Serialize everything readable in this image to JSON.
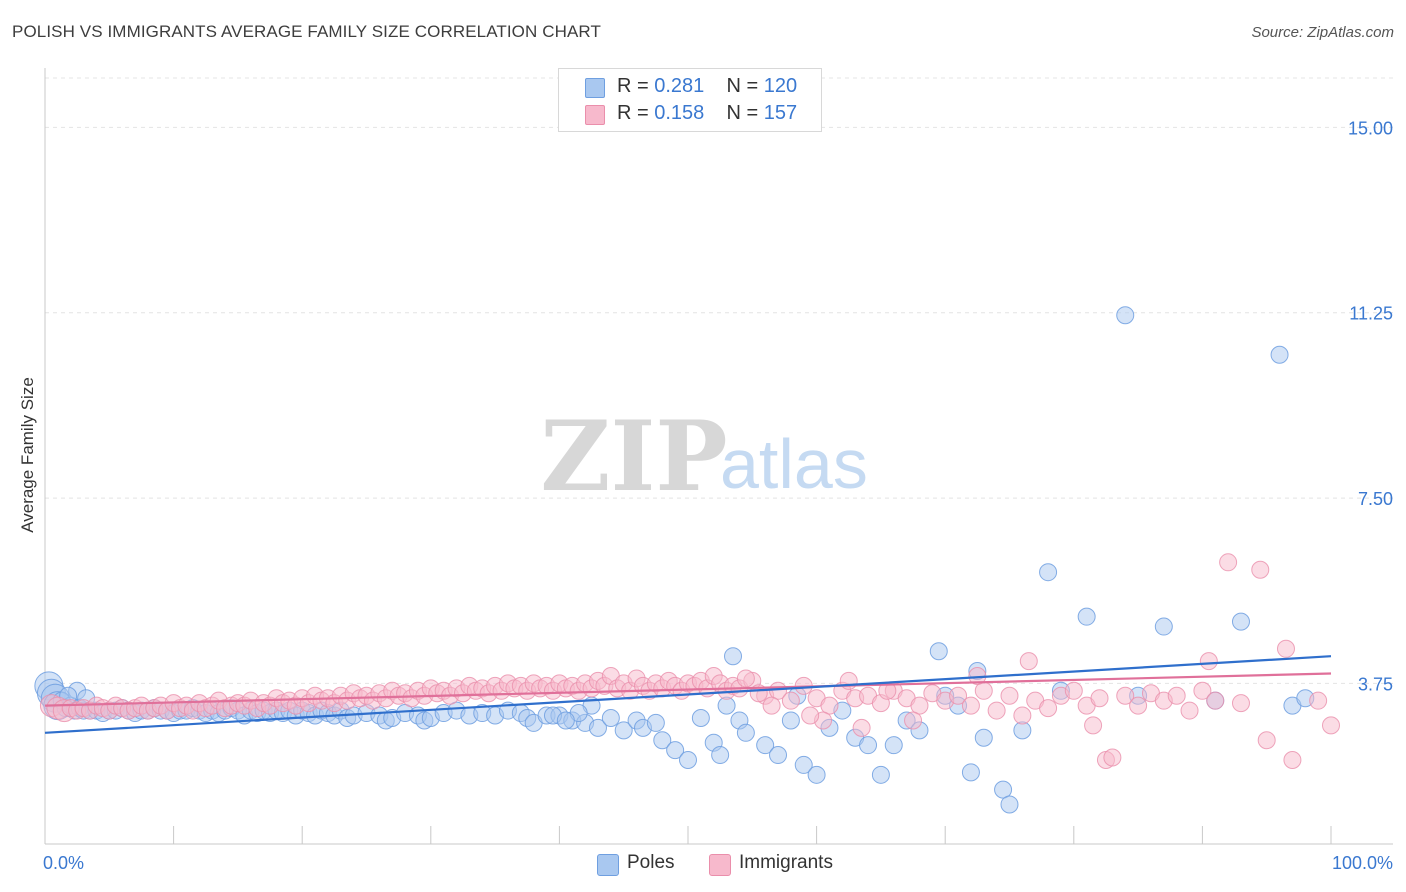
{
  "header": {
    "title": "POLISH VS IMMIGRANTS AVERAGE FAMILY SIZE CORRELATION CHART",
    "source": "Source: ZipAtlas.com"
  },
  "colors": {
    "poles_fill": "#a9c8f0",
    "poles_stroke": "#6f9fe0",
    "poles_line": "#2f6fcc",
    "immigrants_fill": "#f7b9cc",
    "immigrants_stroke": "#ea8eab",
    "immigrants_line": "#e0709a",
    "tick_label": "#3a78d0"
  },
  "legend": {
    "rows": [
      {
        "r_label": "R = ",
        "r_value": "0.281",
        "n_label": "N = ",
        "n_value": "120"
      },
      {
        "r_label": "R = ",
        "r_value": "0.158",
        "n_label": "N = ",
        "n_value": "157"
      }
    ],
    "bottom": [
      "Poles",
      "Immigrants"
    ]
  },
  "watermark": {
    "zip": "ZIP",
    "atlas": "atlas"
  },
  "chart_data": {
    "type": "scatter",
    "title": "POLISH VS IMMIGRANTS AVERAGE FAMILY SIZE CORRELATION CHART",
    "xlabel": "",
    "ylabel": "Average Family Size",
    "xlim": [
      0,
      100
    ],
    "ylim": [
      0.5,
      16
    ],
    "x_tick_labels": [
      "0.0%",
      "100.0%"
    ],
    "y_ticks": [
      3.75,
      7.5,
      11.25,
      15.0
    ],
    "y_tick_labels": [
      "3.75",
      "7.50",
      "11.25",
      "15.00"
    ],
    "grid": true,
    "legend_position": "top-center",
    "series": [
      {
        "name": "Poles",
        "r": 0.281,
        "n": 120,
        "trend": [
          [
            0,
            2.75
          ],
          [
            100,
            4.3
          ]
        ],
        "points": [
          [
            0.3,
            3.7
          ],
          [
            0.5,
            3.55
          ],
          [
            0.8,
            3.45
          ],
          [
            1.0,
            3.3
          ],
          [
            1.3,
            3.4
          ],
          [
            1.6,
            3.25
          ],
          [
            2.0,
            3.3
          ],
          [
            2.3,
            3.2
          ],
          [
            2.7,
            3.25
          ],
          [
            3.0,
            3.2
          ],
          [
            3.5,
            3.2
          ],
          [
            4.0,
            3.2
          ],
          [
            4.5,
            3.15
          ],
          [
            5.0,
            3.2
          ],
          [
            5.5,
            3.2
          ],
          [
            6.0,
            3.25
          ],
          [
            6.5,
            3.2
          ],
          [
            7.0,
            3.15
          ],
          [
            7.5,
            3.2
          ],
          [
            8.0,
            3.2
          ],
          [
            8.5,
            3.25
          ],
          [
            9.0,
            3.2
          ],
          [
            9.5,
            3.2
          ],
          [
            10.0,
            3.15
          ],
          [
            10.5,
            3.2
          ],
          [
            11.0,
            3.2
          ],
          [
            11.5,
            3.25
          ],
          [
            12.0,
            3.2
          ],
          [
            12.5,
            3.15
          ],
          [
            13.0,
            3.2
          ],
          [
            13.5,
            3.15
          ],
          [
            14.0,
            3.2
          ],
          [
            14.5,
            3.25
          ],
          [
            15.0,
            3.2
          ],
          [
            15.5,
            3.1
          ],
          [
            16.0,
            3.2
          ],
          [
            16.5,
            3.15
          ],
          [
            17.0,
            3.2
          ],
          [
            17.5,
            3.15
          ],
          [
            18.0,
            3.2
          ],
          [
            18.5,
            3.15
          ],
          [
            19.0,
            3.2
          ],
          [
            19.5,
            3.1
          ],
          [
            20.0,
            3.2
          ],
          [
            20.5,
            3.15
          ],
          [
            21.0,
            3.1
          ],
          [
            21.5,
            3.2
          ],
          [
            22.0,
            3.15
          ],
          [
            22.5,
            3.1
          ],
          [
            23.0,
            3.2
          ],
          [
            23.5,
            3.05
          ],
          [
            24.0,
            3.1
          ],
          [
            25.0,
            3.15
          ],
          [
            26.0,
            3.1
          ],
          [
            26.5,
            3.0
          ],
          [
            27.0,
            3.05
          ],
          [
            28.0,
            3.15
          ],
          [
            29.0,
            3.1
          ],
          [
            29.5,
            3.0
          ],
          [
            30.0,
            3.05
          ],
          [
            31.0,
            3.15
          ],
          [
            32.0,
            3.2
          ],
          [
            33.0,
            3.1
          ],
          [
            34.0,
            3.15
          ],
          [
            35.0,
            3.1
          ],
          [
            36.0,
            3.2
          ],
          [
            37.0,
            3.15
          ],
          [
            37.5,
            3.05
          ],
          [
            38.0,
            2.95
          ],
          [
            39.0,
            3.1
          ],
          [
            40.0,
            3.1
          ],
          [
            41.0,
            3.0
          ],
          [
            42.0,
            2.95
          ],
          [
            42.5,
            3.3
          ],
          [
            43.0,
            2.85
          ],
          [
            44.0,
            3.05
          ],
          [
            45.0,
            2.8
          ],
          [
            46.0,
            3.0
          ],
          [
            46.5,
            2.85
          ],
          [
            47.5,
            2.95
          ],
          [
            48.0,
            2.6
          ],
          [
            49.0,
            2.4
          ],
          [
            50.0,
            2.2
          ],
          [
            51.0,
            3.05
          ],
          [
            52.0,
            2.55
          ],
          [
            52.5,
            2.3
          ],
          [
            53.0,
            3.3
          ],
          [
            54.0,
            3.0
          ],
          [
            54.5,
            2.75
          ],
          [
            56.0,
            2.5
          ],
          [
            57.0,
            2.3
          ],
          [
            58.0,
            3.0
          ],
          [
            58.5,
            3.5
          ],
          [
            59.0,
            2.1
          ],
          [
            60.0,
            1.9
          ],
          [
            61.0,
            2.85
          ],
          [
            62.0,
            3.2
          ],
          [
            63.0,
            2.65
          ],
          [
            64.0,
            2.5
          ],
          [
            65.0,
            1.9
          ],
          [
            66.0,
            2.5
          ],
          [
            67.0,
            3.0
          ],
          [
            68.0,
            2.8
          ],
          [
            69.5,
            4.4
          ],
          [
            70.0,
            3.5
          ],
          [
            71.0,
            3.3
          ],
          [
            72.0,
            1.95
          ],
          [
            73.0,
            2.65
          ],
          [
            74.5,
            1.6
          ],
          [
            76.0,
            2.8
          ],
          [
            78.0,
            6.0
          ],
          [
            79.0,
            3.6
          ],
          [
            81.0,
            5.1
          ],
          [
            84.0,
            11.2
          ],
          [
            85.0,
            3.5
          ],
          [
            87.0,
            4.9
          ],
          [
            91.0,
            3.4
          ],
          [
            93.0,
            5.0
          ],
          [
            96.0,
            10.4
          ],
          [
            97.0,
            3.3
          ],
          [
            98.0,
            3.45
          ],
          [
            72.5,
            4.0
          ],
          [
            75.0,
            1.3
          ],
          [
            53.5,
            4.3
          ],
          [
            39.5,
            3.1
          ],
          [
            41.5,
            3.15
          ],
          [
            40.5,
            3.0
          ],
          [
            2.5,
            3.6
          ],
          [
            3.2,
            3.45
          ],
          [
            1.8,
            3.5
          ]
        ]
      },
      {
        "name": "Immigrants",
        "r": 0.158,
        "n": 157,
        "trend": [
          [
            0,
            3.3
          ],
          [
            100,
            3.95
          ]
        ],
        "points": [
          [
            0.5,
            3.3
          ],
          [
            1.0,
            3.25
          ],
          [
            1.5,
            3.2
          ],
          [
            2.0,
            3.25
          ],
          [
            2.5,
            3.2
          ],
          [
            3.0,
            3.25
          ],
          [
            3.5,
            3.2
          ],
          [
            4.0,
            3.3
          ],
          [
            4.5,
            3.25
          ],
          [
            5.0,
            3.2
          ],
          [
            5.5,
            3.3
          ],
          [
            6.0,
            3.25
          ],
          [
            6.5,
            3.2
          ],
          [
            7.0,
            3.25
          ],
          [
            7.5,
            3.3
          ],
          [
            8.0,
            3.2
          ],
          [
            8.5,
            3.25
          ],
          [
            9.0,
            3.3
          ],
          [
            9.5,
            3.2
          ],
          [
            10.0,
            3.35
          ],
          [
            10.5,
            3.25
          ],
          [
            11.0,
            3.3
          ],
          [
            11.5,
            3.2
          ],
          [
            12.0,
            3.35
          ],
          [
            12.5,
            3.25
          ],
          [
            13.0,
            3.3
          ],
          [
            13.5,
            3.4
          ],
          [
            14.0,
            3.25
          ],
          [
            14.5,
            3.3
          ],
          [
            15.0,
            3.35
          ],
          [
            15.5,
            3.3
          ],
          [
            16.0,
            3.4
          ],
          [
            16.5,
            3.25
          ],
          [
            17.0,
            3.35
          ],
          [
            17.5,
            3.3
          ],
          [
            18.0,
            3.45
          ],
          [
            18.5,
            3.35
          ],
          [
            19.0,
            3.4
          ],
          [
            19.5,
            3.3
          ],
          [
            20.0,
            3.45
          ],
          [
            20.5,
            3.35
          ],
          [
            21.0,
            3.5
          ],
          [
            21.5,
            3.4
          ],
          [
            22.0,
            3.45
          ],
          [
            22.5,
            3.35
          ],
          [
            23.0,
            3.5
          ],
          [
            23.5,
            3.4
          ],
          [
            24.0,
            3.55
          ],
          [
            24.5,
            3.45
          ],
          [
            25.0,
            3.5
          ],
          [
            25.5,
            3.4
          ],
          [
            26.0,
            3.55
          ],
          [
            26.5,
            3.45
          ],
          [
            27.0,
            3.6
          ],
          [
            27.5,
            3.5
          ],
          [
            28.0,
            3.55
          ],
          [
            28.5,
            3.45
          ],
          [
            29.0,
            3.6
          ],
          [
            29.5,
            3.5
          ],
          [
            30.0,
            3.65
          ],
          [
            30.5,
            3.55
          ],
          [
            31.0,
            3.6
          ],
          [
            31.5,
            3.5
          ],
          [
            32.0,
            3.65
          ],
          [
            32.5,
            3.55
          ],
          [
            33.0,
            3.7
          ],
          [
            33.5,
            3.6
          ],
          [
            34.0,
            3.65
          ],
          [
            34.5,
            3.55
          ],
          [
            35.0,
            3.7
          ],
          [
            35.5,
            3.6
          ],
          [
            36.0,
            3.75
          ],
          [
            36.5,
            3.65
          ],
          [
            37.0,
            3.7
          ],
          [
            37.5,
            3.6
          ],
          [
            38.0,
            3.75
          ],
          [
            38.5,
            3.65
          ],
          [
            39.0,
            3.7
          ],
          [
            39.5,
            3.6
          ],
          [
            40.0,
            3.75
          ],
          [
            40.5,
            3.65
          ],
          [
            41.0,
            3.7
          ],
          [
            41.5,
            3.6
          ],
          [
            42.0,
            3.75
          ],
          [
            42.5,
            3.65
          ],
          [
            43.0,
            3.8
          ],
          [
            43.5,
            3.7
          ],
          [
            44.0,
            3.9
          ],
          [
            44.5,
            3.65
          ],
          [
            45.0,
            3.75
          ],
          [
            45.5,
            3.6
          ],
          [
            46.0,
            3.85
          ],
          [
            46.5,
            3.7
          ],
          [
            47.0,
            3.6
          ],
          [
            47.5,
            3.75
          ],
          [
            48.0,
            3.65
          ],
          [
            48.5,
            3.8
          ],
          [
            49.0,
            3.7
          ],
          [
            49.5,
            3.6
          ],
          [
            50.0,
            3.75
          ],
          [
            50.5,
            3.7
          ],
          [
            51.0,
            3.8
          ],
          [
            51.5,
            3.65
          ],
          [
            52.0,
            3.9
          ],
          [
            52.5,
            3.75
          ],
          [
            53.0,
            3.6
          ],
          [
            53.5,
            3.7
          ],
          [
            54.0,
            3.65
          ],
          [
            55.0,
            3.8
          ],
          [
            56.0,
            3.5
          ],
          [
            57.0,
            3.6
          ],
          [
            58.0,
            3.4
          ],
          [
            59.0,
            3.7
          ],
          [
            60.0,
            3.45
          ],
          [
            61.0,
            3.3
          ],
          [
            62.0,
            3.6
          ],
          [
            63.0,
            3.45
          ],
          [
            64.0,
            3.5
          ],
          [
            65.0,
            3.35
          ],
          [
            66.0,
            3.6
          ],
          [
            67.0,
            3.45
          ],
          [
            68.0,
            3.3
          ],
          [
            69.0,
            3.55
          ],
          [
            70.0,
            3.4
          ],
          [
            71.0,
            3.5
          ],
          [
            72.0,
            3.3
          ],
          [
            73.0,
            3.6
          ],
          [
            74.0,
            3.2
          ],
          [
            75.0,
            3.5
          ],
          [
            76.0,
            3.1
          ],
          [
            77.0,
            3.4
          ],
          [
            78.0,
            3.25
          ],
          [
            79.0,
            3.5
          ],
          [
            80.0,
            3.6
          ],
          [
            81.0,
            3.3
          ],
          [
            82.0,
            3.45
          ],
          [
            84.0,
            3.5
          ],
          [
            85.0,
            3.3
          ],
          [
            86.0,
            3.55
          ],
          [
            87.0,
            3.4
          ],
          [
            88.0,
            3.5
          ],
          [
            89.0,
            3.2
          ],
          [
            90.0,
            3.6
          ],
          [
            91.0,
            3.4
          ],
          [
            93.0,
            3.35
          ],
          [
            95.0,
            2.6
          ],
          [
            97.0,
            2.2
          ],
          [
            99.0,
            3.4
          ],
          [
            100.0,
            2.9
          ],
          [
            82.5,
            2.2
          ],
          [
            72.5,
            3.9
          ],
          [
            65.5,
            3.6
          ],
          [
            81.5,
            2.9
          ],
          [
            67.5,
            3.0
          ],
          [
            83.0,
            2.25
          ],
          [
            94.5,
            6.05
          ],
          [
            96.5,
            4.45
          ],
          [
            92.0,
            6.2
          ],
          [
            90.5,
            4.2
          ],
          [
            76.5,
            4.2
          ],
          [
            60.5,
            3.0
          ],
          [
            62.5,
            3.8
          ],
          [
            59.5,
            3.1
          ],
          [
            63.5,
            2.85
          ],
          [
            56.5,
            3.3
          ],
          [
            55.5,
            3.55
          ],
          [
            54.5,
            3.85
          ]
        ]
      }
    ]
  }
}
